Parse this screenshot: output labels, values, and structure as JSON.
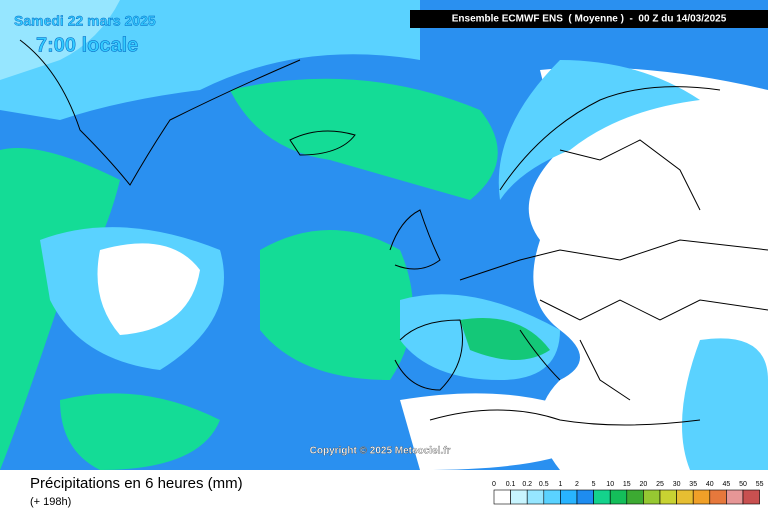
{
  "header": {
    "date": "Samedi 22 mars 2025",
    "time": "7:00 locale",
    "model": "Ensemble ECMWF ENS  ( Moyenne )  -  00 Z du 14/03/2025"
  },
  "copyright": "Copyright © 2025 Meteociel.fr",
  "footer": {
    "title": "Précipitations en 6 heures (mm)",
    "lead": "(+ 198h)"
  },
  "legend": {
    "labels": [
      "0",
      "0.1",
      "0.2",
      "0.5",
      "1",
      "2",
      "5",
      "10",
      "15",
      "20",
      "25",
      "30",
      "35",
      "40",
      "45",
      "50",
      "55"
    ],
    "colors": [
      "#ffffff",
      "#c8f5ff",
      "#96e6ff",
      "#5ad2ff",
      "#28b4ff",
      "#1e8cf0",
      "#14d28c",
      "#14be5a",
      "#3caa32",
      "#96c832",
      "#c8d232",
      "#e6be32",
      "#f0a028",
      "#e6783c",
      "#e69696",
      "#c85050"
    ]
  }
}
